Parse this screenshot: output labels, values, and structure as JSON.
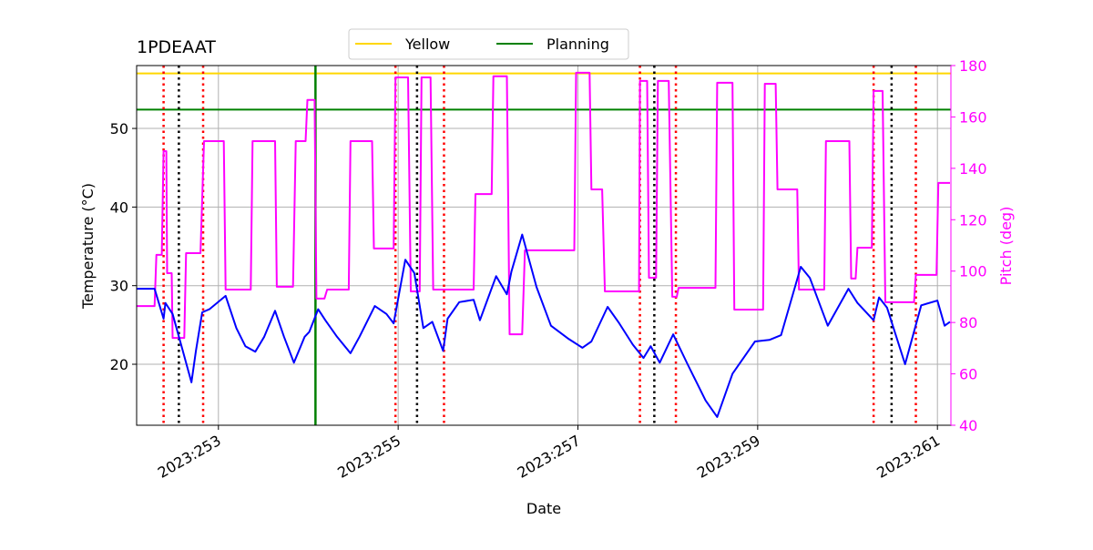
{
  "chart_data": {
    "type": "line",
    "title": "1PDEAAT",
    "x_label": "Date",
    "y_label": "Temperature (°C)",
    "y2_label": "Pitch (deg)",
    "y2_color": "#ff00ff",
    "xlim": [
      252.09,
      261.15
    ],
    "xticks": [
      {
        "value": 253,
        "label": "2023:253"
      },
      {
        "value": 255,
        "label": "2023:255"
      },
      {
        "value": 257,
        "label": "2023:257"
      },
      {
        "value": 259,
        "label": "2023:259"
      },
      {
        "value": 261,
        "label": "2023:261"
      }
    ],
    "ylim": [
      12.24,
      58.0
    ],
    "yticks": [
      20,
      30,
      40,
      50
    ],
    "y2lim": [
      40,
      180
    ],
    "y2ticks": [
      40,
      60,
      80,
      100,
      120,
      140,
      160,
      180
    ],
    "grid": true,
    "legend": "upper center",
    "series": [
      {
        "color": "#0000ff",
        "x": [
          252.09,
          252.29,
          252.39,
          252.41,
          252.49,
          252.59,
          252.7,
          252.75,
          252.82,
          252.9,
          253.08,
          253.2,
          253.3,
          253.41,
          253.51,
          253.63,
          253.73,
          253.84,
          253.96,
          254.01,
          254.11,
          254.19,
          254.32,
          254.47,
          254.57,
          254.74,
          254.87,
          254.95,
          255.08,
          255.18,
          255.28,
          255.38,
          255.5,
          255.55,
          255.68,
          255.84,
          255.91,
          255.99,
          256.09,
          256.21,
          256.26,
          256.38,
          256.54,
          256.7,
          256.9,
          257.05,
          257.15,
          257.33,
          257.46,
          257.61,
          257.73,
          257.81,
          257.91,
          258.06,
          258.22,
          258.42,
          258.55,
          258.72,
          258.97,
          259.13,
          259.26,
          259.48,
          259.58,
          259.78,
          260.01,
          260.11,
          260.29,
          260.35,
          260.44,
          260.64,
          260.82,
          261.0,
          261.08,
          261.14
        ],
        "values": [
          29.6,
          29.6,
          25.8,
          27.8,
          26.4,
          22.3,
          17.7,
          21.7,
          26.6,
          27.0,
          28.7,
          24.6,
          22.3,
          21.6,
          23.5,
          26.8,
          23.5,
          20.2,
          23.5,
          24.1,
          27.0,
          25.6,
          23.5,
          21.4,
          23.5,
          27.4,
          26.4,
          25.2,
          33.3,
          31.6,
          24.6,
          25.4,
          21.7,
          25.8,
          27.9,
          28.2,
          25.6,
          28.1,
          31.2,
          28.9,
          31.8,
          36.5,
          29.8,
          24.9,
          23.2,
          22.1,
          22.9,
          27.3,
          25.2,
          22.5,
          20.8,
          22.3,
          20.2,
          23.8,
          20.0,
          15.4,
          13.3,
          18.8,
          22.9,
          23.1,
          23.7,
          32.4,
          31.0,
          24.9,
          29.6,
          27.8,
          25.6,
          28.5,
          27.2,
          20.0,
          27.5,
          28.1,
          24.9,
          25.4
        ]
      },
      {
        "color": "#ff00ff",
        "axis": "y2",
        "x": [
          252.09,
          252.29,
          252.31,
          252.37,
          252.39,
          252.42,
          252.43,
          252.48,
          252.49,
          252.62,
          252.64,
          252.8,
          252.84,
          253.06,
          253.08,
          253.36,
          253.38,
          253.63,
          253.65,
          253.83,
          253.86,
          253.97,
          253.99,
          254.07,
          254.09,
          254.18,
          254.21,
          254.45,
          254.47,
          254.71,
          254.73,
          254.95,
          254.97,
          255.11,
          255.14,
          255.24,
          255.26,
          255.36,
          255.39,
          255.84,
          255.86,
          256.04,
          256.06,
          256.21,
          256.24,
          256.38,
          256.41,
          256.96,
          256.98,
          257.13,
          257.15,
          257.27,
          257.3,
          257.68,
          257.69,
          257.77,
          257.79,
          257.87,
          257.89,
          258.01,
          258.05,
          258.1,
          258.12,
          258.53,
          258.55,
          258.72,
          258.74,
          259.06,
          259.08,
          259.2,
          259.22,
          259.44,
          259.46,
          259.74,
          259.76,
          260.02,
          260.04,
          260.09,
          260.11,
          260.27,
          260.29,
          260.39,
          260.42,
          260.74,
          260.76,
          260.99,
          261.01,
          261.14
        ],
        "values": [
          86.4,
          86.4,
          106.3,
          106.3,
          146.7,
          146.7,
          99.2,
          99.2,
          74.0,
          74.0,
          107.0,
          107.0,
          150.6,
          150.6,
          92.8,
          92.8,
          150.6,
          150.6,
          93.9,
          93.9,
          150.6,
          150.6,
          166.6,
          166.6,
          89.3,
          89.3,
          92.8,
          92.8,
          150.6,
          150.6,
          108.8,
          108.8,
          175.4,
          175.4,
          92.1,
          92.1,
          175.4,
          175.4,
          92.8,
          92.8,
          130.0,
          130.0,
          175.8,
          175.8,
          75.4,
          75.4,
          108.1,
          108.1,
          177.2,
          177.2,
          131.8,
          131.8,
          92.1,
          92.1,
          174.0,
          174.0,
          97.4,
          97.4,
          174.0,
          174.0,
          90.0,
          90.0,
          93.5,
          93.5,
          173.3,
          173.3,
          85.0,
          85.0,
          172.9,
          172.9,
          131.8,
          131.8,
          92.8,
          92.8,
          150.6,
          150.6,
          97.1,
          97.1,
          109.1,
          109.1,
          170.1,
          170.1,
          87.9,
          87.9,
          98.5,
          98.5,
          134.3,
          134.3
        ]
      }
    ],
    "hlines": [
      {
        "name": "Yellow",
        "color": "#ffd700",
        "value": 57.0
      },
      {
        "name": "Planning",
        "color": "#008000",
        "value": 52.4
      }
    ],
    "vlines": [
      {
        "color": "#008000",
        "style": "solid",
        "x": [
          254.08
        ]
      },
      {
        "color": "#ff0000",
        "style": "dotted",
        "x": [
          252.39,
          252.83,
          254.97,
          255.51,
          257.69,
          258.09,
          260.29,
          260.76
        ]
      },
      {
        "color": "#000000",
        "style": "dotted",
        "x": [
          252.56,
          255.21,
          257.85,
          260.49
        ]
      }
    ]
  }
}
